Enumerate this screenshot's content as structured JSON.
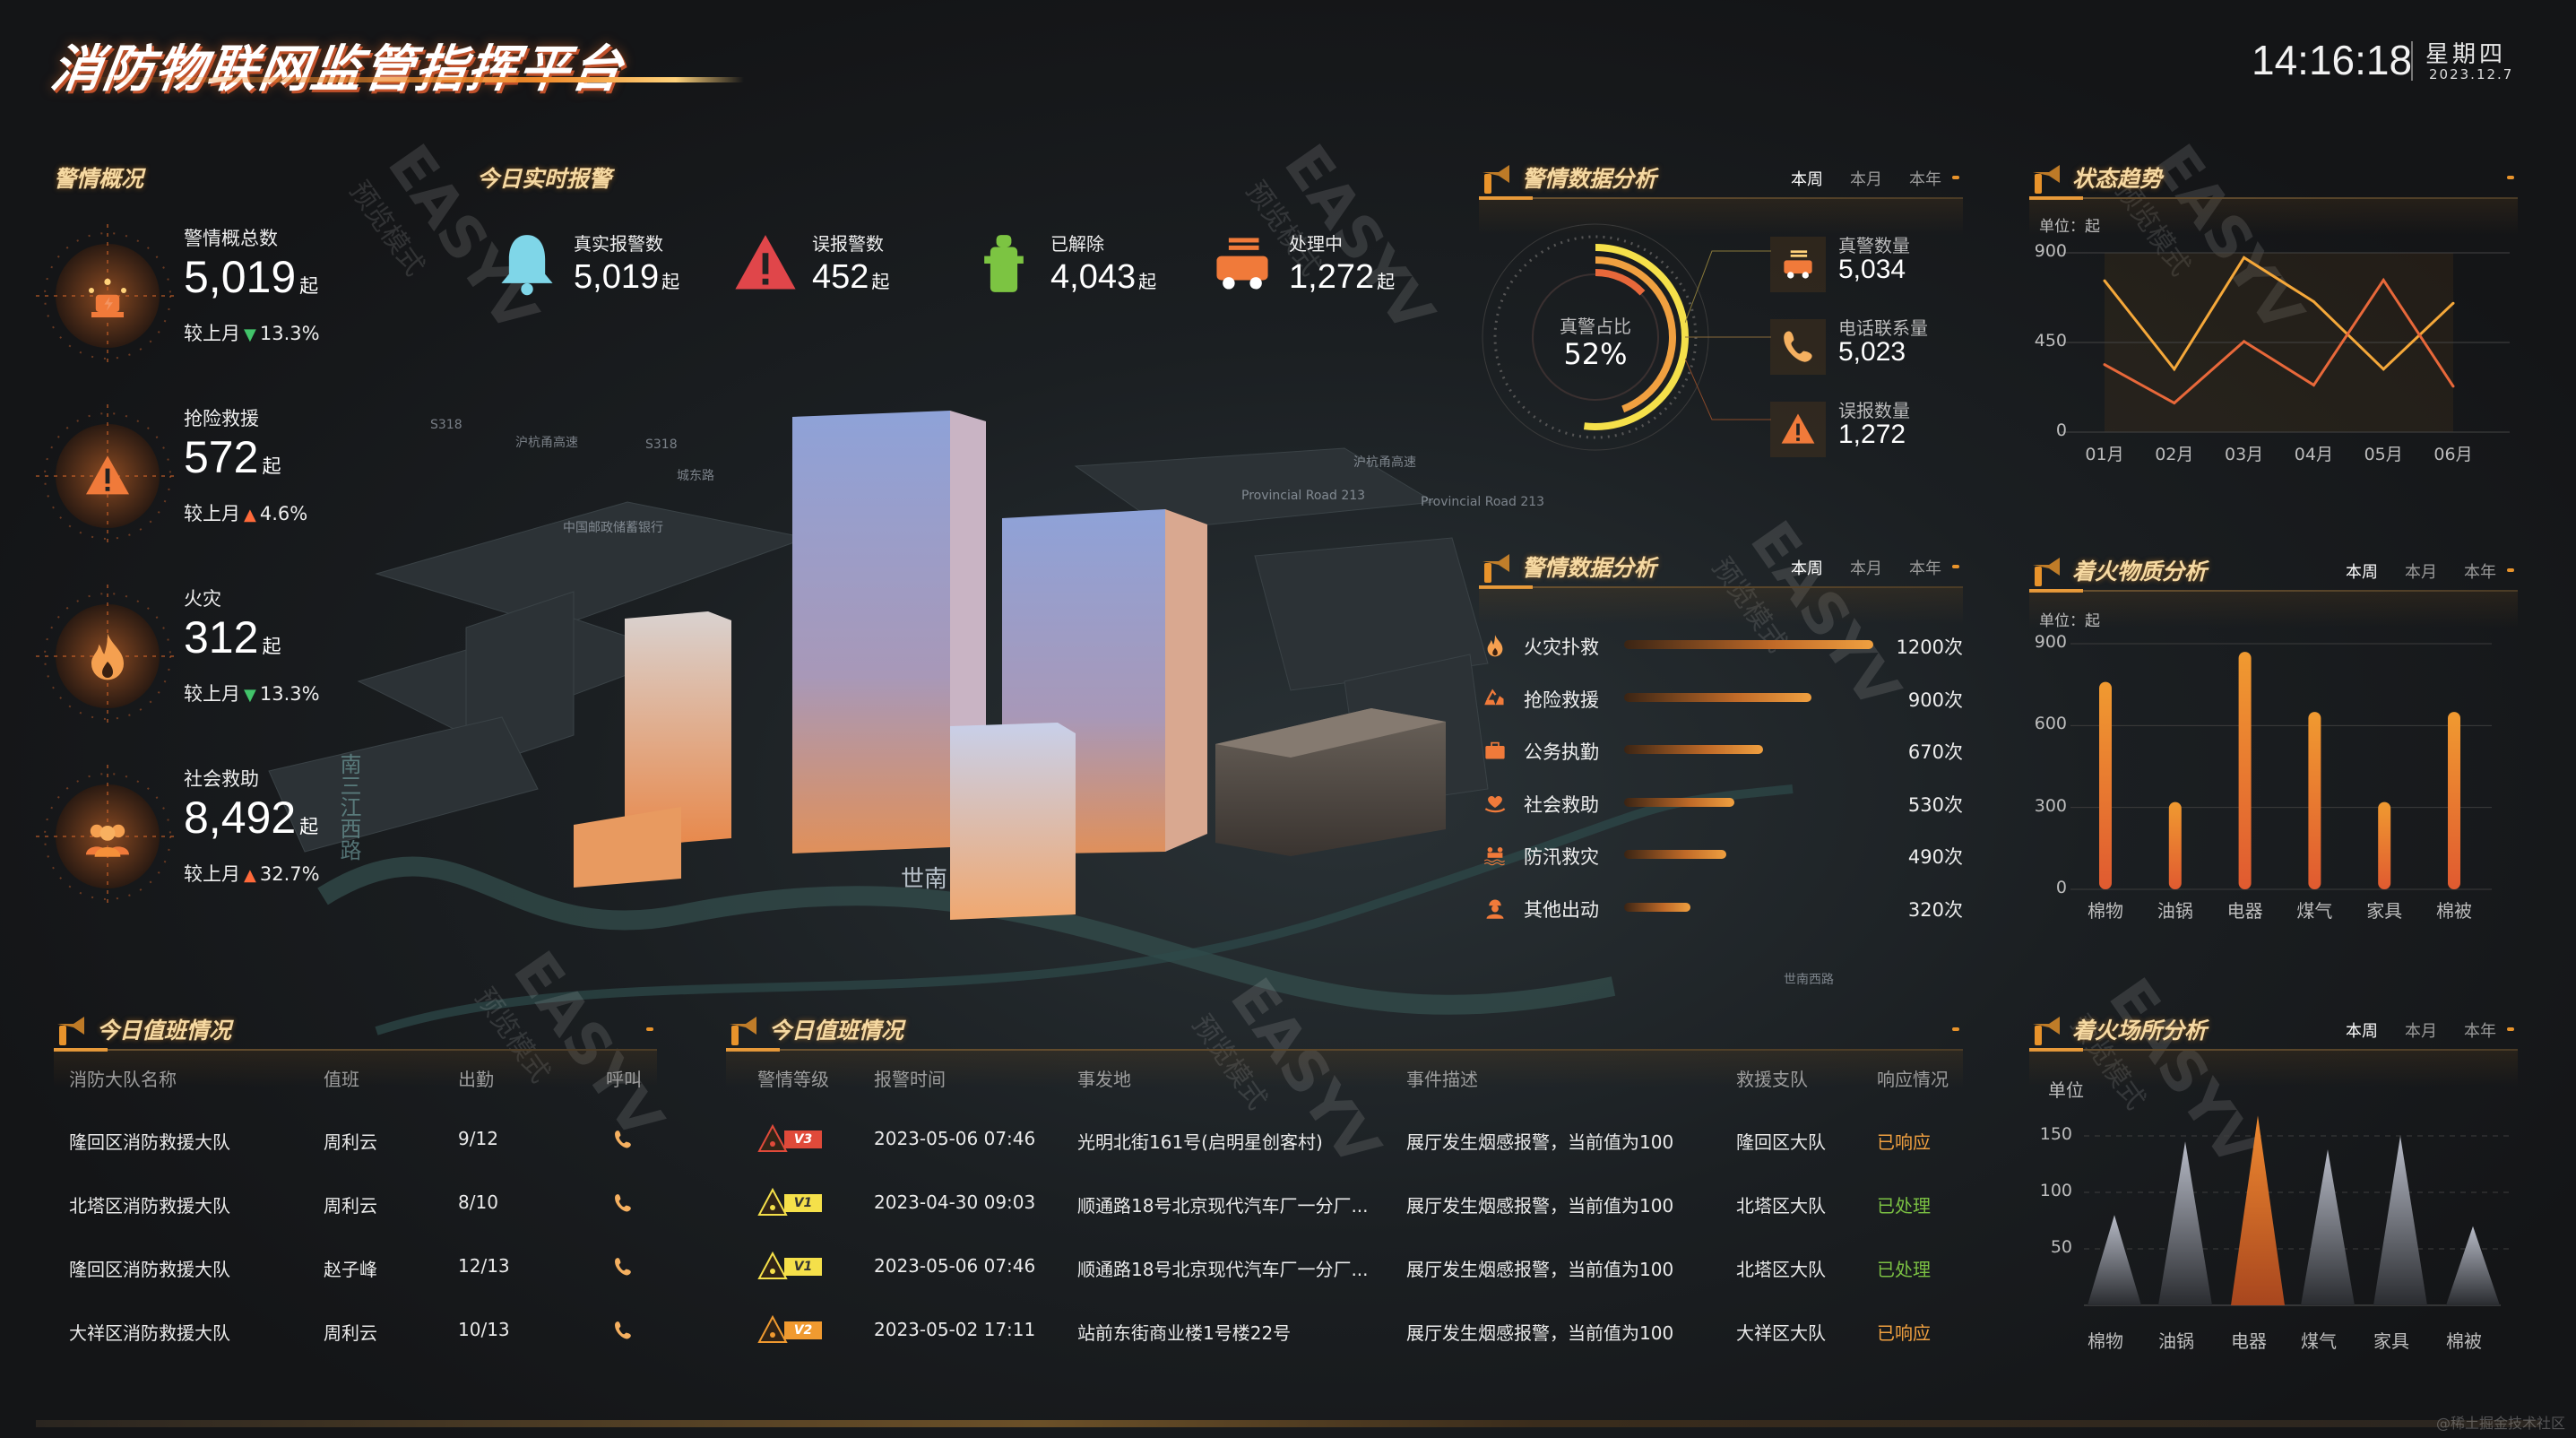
{
  "header": {
    "title": "消防物联网监管指挥平台",
    "time": "14:16:18",
    "weekday": "星期四",
    "date": "2023.12.7"
  },
  "colors": {
    "accent": "#f0932b",
    "title_text": "#f6d9a2",
    "up": "#ff6a3a",
    "down": "#42c46a",
    "responded": "#f0a040",
    "handled": "#7bc043",
    "level_v1": "#f5e04a",
    "level_v2": "#f09a30",
    "level_v3": "#e04a3a"
  },
  "watermark": {
    "text": "EASYV",
    "sub": "预览模式"
  },
  "credit": "@稀土掘金技术社区",
  "map_labels": [
    "S318",
    "沪杭甬高速",
    "城东路",
    "S318",
    "中国邮政储蓄银行",
    "Provincial Road 213",
    "Provincial Road 213",
    "沪杭甬高速",
    "世南",
    "世南西路",
    "南三江西路"
  ],
  "overview": {
    "title": "警情概况",
    "compare_label": "较上月",
    "items": [
      {
        "label": "警情概总数",
        "value": "5,019",
        "unit": "起",
        "trend": "down",
        "change": "13.3%",
        "icon": "alarm-light-icon"
      },
      {
        "label": "抢险救援",
        "value": "572",
        "unit": "起",
        "trend": "up",
        "change": "4.6%",
        "icon": "warning-icon"
      },
      {
        "label": "火灾",
        "value": "312",
        "unit": "起",
        "trend": "down",
        "change": "13.3%",
        "icon": "flame-icon"
      },
      {
        "label": "社会救助",
        "value": "8,492",
        "unit": "起",
        "trend": "up",
        "change": "32.7%",
        "icon": "rescuers-icon"
      }
    ]
  },
  "realtime": {
    "title": "今日实时报警",
    "items": [
      {
        "label": "真实报警数",
        "value": "5,019",
        "unit": "起",
        "icon": "bell-icon",
        "color": "#7fd6e8"
      },
      {
        "label": "误报警数",
        "value": "452",
        "unit": "起",
        "icon": "warning-icon",
        "color": "#e0464a"
      },
      {
        "label": "已解除",
        "value": "4,043",
        "unit": "起",
        "icon": "hydrant-icon",
        "color": "#7cc442"
      },
      {
        "label": "处理中",
        "value": "1,272",
        "unit": "起",
        "icon": "fire-truck-icon",
        "color": "#f07a3a"
      }
    ]
  },
  "tabs": [
    "本周",
    "本月",
    "本年"
  ],
  "ring_panel": {
    "title": "警情数据分析",
    "active_tab": 0,
    "ring_label": "真警占比",
    "ring_value": "52%",
    "ring_percent": 52,
    "stats": [
      {
        "label": "真警数量",
        "value": "5,034",
        "icon": "fire-truck-icon"
      },
      {
        "label": "电话联系量",
        "value": "5,023",
        "icon": "phone-icon"
      },
      {
        "label": "误报数量",
        "value": "1,272",
        "icon": "warning-icon"
      }
    ]
  },
  "trend_panel": {
    "title": "状态趋势",
    "unit": "单位：起"
  },
  "hbar_panel": {
    "title": "警情数据分析",
    "active_tab": 0,
    "icons": [
      "flame-icon",
      "excavator-icon",
      "briefcase-icon",
      "heart-hand-icon",
      "flood-icon",
      "worker-icon"
    ]
  },
  "material_panel": {
    "title": "着火物质分析",
    "active_tab": 0,
    "unit": "单位：起"
  },
  "place_panel": {
    "title": "着火场所分析",
    "active_tab": 0,
    "unit": "单位"
  },
  "duty_table": {
    "title": "今日值班情况",
    "columns": [
      "消防大队名称",
      "值班",
      "出勤",
      "呼叫"
    ],
    "rows": [
      [
        "隆回区消防救援大队",
        "周利云",
        "9/12"
      ],
      [
        "北塔区消防救援大队",
        "周利云",
        "8/10"
      ],
      [
        "隆回区消防救援大队",
        "赵子峰",
        "12/13"
      ],
      [
        "大祥区消防救援大队",
        "周利云",
        "10/13"
      ]
    ],
    "call_icon": "phone-icon"
  },
  "alarm_table": {
    "title": "今日值班情况",
    "columns": [
      "警情等级",
      "报警时间",
      "事发地",
      "事件描述",
      "救援支队",
      "响应情况"
    ],
    "rows": [
      {
        "level": "V3",
        "time": "2023-05-06 07:46",
        "place": "光明北街161号(启明星创客村)",
        "desc": "展厅发生烟感报警，当前值为100",
        "team": "隆回区大队",
        "status": "已响应",
        "status_type": "responded"
      },
      {
        "level": "V1",
        "time": "2023-04-30 09:03",
        "place": "顺通路18号北京现代汽车厂一分厂...",
        "desc": "展厅发生烟感报警，当前值为100",
        "team": "北塔区大队",
        "status": "已处理",
        "status_type": "handled"
      },
      {
        "level": "V1",
        "time": "2023-05-06 07:46",
        "place": "顺通路18号北京现代汽车厂一分厂...",
        "desc": "展厅发生烟感报警，当前值为100",
        "team": "北塔区大队",
        "status": "已处理",
        "status_type": "handled"
      },
      {
        "level": "V2",
        "time": "2023-05-02 17:11",
        "place": "站前东街商业楼1号楼22号",
        "desc": "展厅发生烟感报警，当前值为100",
        "team": "大祥区大队",
        "status": "已响应",
        "status_type": "responded"
      }
    ]
  },
  "chart_data": [
    {
      "id": "trend",
      "type": "line",
      "categories": [
        "01月",
        "02月",
        "03月",
        "04月",
        "05月",
        "06月"
      ],
      "series": [
        {
          "values": [
            760,
            316,
            876,
            655,
            316,
            647
          ],
          "color": "#f5a83a"
        },
        {
          "values": [
            339,
            146,
            455,
            236,
            763,
            230
          ],
          "color": "#e8683a"
        }
      ],
      "ylabel": "单位：起",
      "yticks": [
        0,
        450,
        900
      ],
      "ylim": [
        0,
        900
      ],
      "grid": true
    },
    {
      "id": "alarm_types",
      "type": "bar",
      "orientation": "horizontal",
      "categories": [
        "火灾扑救",
        "抢险救援",
        "公务执勤",
        "社会救助",
        "防汛救灾",
        "其他出动"
      ],
      "values": [
        1200,
        900,
        670,
        530,
        490,
        320
      ],
      "value_suffix": "次",
      "xlim": [
        0,
        1200
      ]
    },
    {
      "id": "material",
      "type": "bar",
      "categories": [
        "棉物",
        "油锅",
        "电器",
        "煤气",
        "家具",
        "棉被"
      ],
      "values": [
        760,
        320,
        870,
        650,
        320,
        650
      ],
      "ylabel": "单位：起",
      "yticks": [
        0,
        300,
        600,
        900
      ],
      "ylim": [
        0,
        900
      ],
      "grid": true
    },
    {
      "id": "place",
      "type": "bar",
      "shape": "triangle",
      "categories": [
        "棉物",
        "油锅",
        "电器",
        "煤气",
        "家具",
        "棉被"
      ],
      "values": [
        80,
        145,
        168,
        138,
        150,
        70
      ],
      "highlight_index": 2,
      "ylabel": "单位",
      "yticks": [
        50,
        100,
        150
      ],
      "ylim": [
        0,
        170
      ],
      "grid": true
    }
  ]
}
